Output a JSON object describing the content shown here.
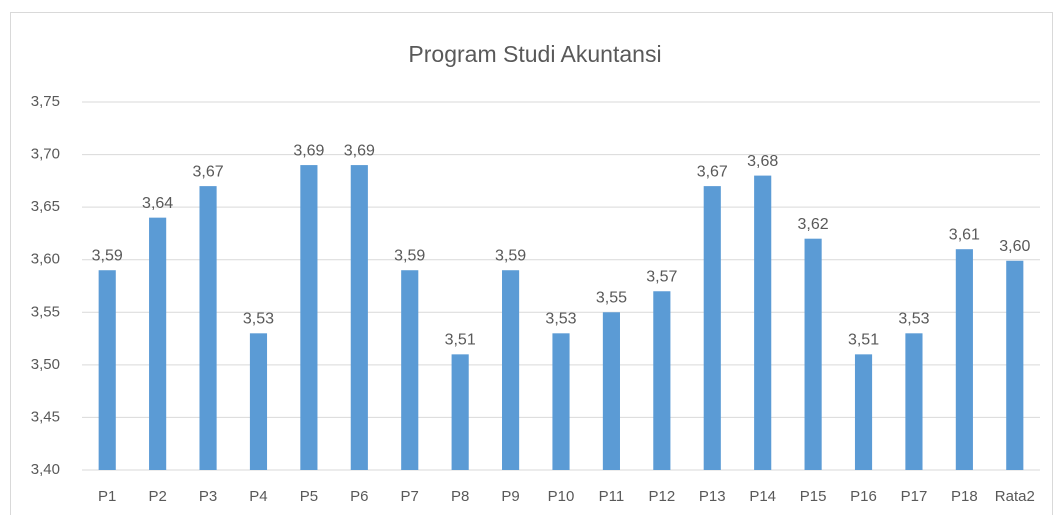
{
  "chart_data": {
    "type": "bar",
    "title": "Program Studi Akuntansi",
    "categories": [
      "P1",
      "P2",
      "P3",
      "P4",
      "P5",
      "P6",
      "P7",
      "P8",
      "P9",
      "P10",
      "P11",
      "P12",
      "P13",
      "P14",
      "P15",
      "P16",
      "P17",
      "P18",
      "Rata2"
    ],
    "values": [
      3.59,
      3.64,
      3.67,
      3.53,
      3.69,
      3.69,
      3.59,
      3.51,
      3.59,
      3.53,
      3.55,
      3.57,
      3.67,
      3.68,
      3.62,
      3.51,
      3.53,
      3.61,
      3.599
    ],
    "value_labels": [
      "3,59",
      "3,64",
      "3,67",
      "3,53",
      "3,69",
      "3,69",
      "3,59",
      "3,51",
      "3,59",
      "3,53",
      "3,55",
      "3,57",
      "3,67",
      "3,68",
      "3,62",
      "3,51",
      "3,53",
      "3,61",
      "3,60"
    ],
    "color": "#5b9bd5",
    "ylim": [
      3.4,
      3.75
    ],
    "yticks": [
      {
        "value": 3.4,
        "label": "3,40"
      },
      {
        "value": 3.45,
        "label": "3,45"
      },
      {
        "value": 3.5,
        "label": "3,50"
      },
      {
        "value": 3.55,
        "label": "3,55"
      },
      {
        "value": 3.6,
        "label": "3,60"
      },
      {
        "value": 3.65,
        "label": "3,65"
      },
      {
        "value": 3.7,
        "label": "3,70"
      },
      {
        "value": 3.75,
        "label": "3,75"
      }
    ],
    "grid": true
  }
}
